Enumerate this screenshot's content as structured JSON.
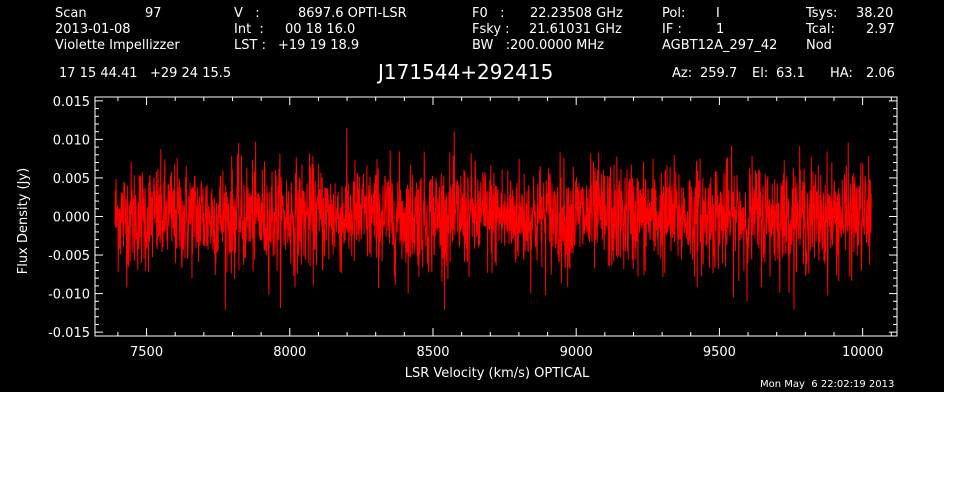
{
  "header": {
    "scan_label": "Scan",
    "scan_value": "97",
    "date": "2013-01-08",
    "observer": "Violette Impellizzer",
    "v_label": "V   :",
    "v_value": "8697.6 OPTI-LSR",
    "int_label": "Int  :",
    "int_value": "00 18 16.0",
    "lst_label": "LST :",
    "lst_value": "+19 19 18.9",
    "f0_label": "F0   :",
    "f0_value": "22.23508 GHz",
    "fsky_label": "Fsky :",
    "fsky_value": "21.61031 GHz",
    "bw_label": "BW   :",
    "bw_value": "200.0000 MHz",
    "pol_label": "Pol:",
    "pol_value": "I",
    "if_label": "IF :",
    "if_value": "1",
    "project": "AGBT12A_297_42",
    "tsys_label": "Tsys:",
    "tsys_value": "38.20",
    "tcal_label": "Tcal:",
    "tcal_value": "2.97",
    "mode": "Nod",
    "coords": "17 15 44.41   +29 24 15.5",
    "source": "J171544+292415",
    "az_label": "Az:",
    "az_value": "259.7",
    "el_label": "El:",
    "el_value": "63.1",
    "ha_label": "HA:",
    "ha_value": "2.06"
  },
  "footer": {
    "timestamp": "Mon May  6 22:02:19 2013"
  },
  "colors": {
    "background": "#000000",
    "axes": "#ffffff",
    "series": "#ff0000"
  },
  "chart_data": {
    "type": "line",
    "xlabel": "LSR Velocity (km/s) OPTICAL",
    "ylabel": "Flux Density (Jy)",
    "xlim": [
      7320,
      10120
    ],
    "ylim": [
      -0.0155,
      0.0155
    ],
    "x_range": [
      7390,
      10030
    ],
    "x_ticks": [
      7500,
      8000,
      8500,
      9000,
      9500,
      10000
    ],
    "x_tick_labels": [
      "7500",
      "8000",
      "8500",
      "9000",
      "9500",
      "10000"
    ],
    "y_ticks": [
      -0.015,
      -0.01,
      -0.005,
      0.0,
      0.005,
      0.01,
      0.015
    ],
    "y_tick_labels": [
      "-0.015",
      "-0.010",
      "-0.005",
      "0.000",
      "0.005",
      "0.010",
      "0.015"
    ],
    "series": [
      {
        "noise_rms": 0.0035,
        "mean": 0.0,
        "peak": 0.0125,
        "trough": -0.0121
      }
    ],
    "grid": false
  }
}
